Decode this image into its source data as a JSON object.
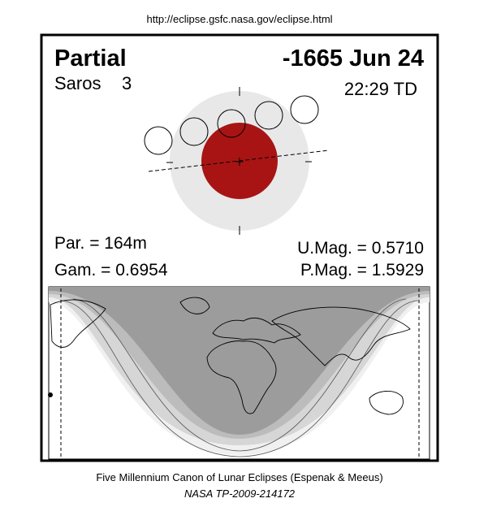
{
  "header": {
    "url": "http://eclipse.gsfc.nasa.gov/eclipse.html"
  },
  "panel": {
    "eclipse_type": "Partial",
    "date": "-1665 Jun 24",
    "saros_label": "Saros",
    "saros_number": "3",
    "time": "22:29 TD",
    "parameters": {
      "duration": "Par. = 164m",
      "gamma": "Gam. = 0.6954",
      "umbral_magnitude": "U.Mag. = 0.5710",
      "penumbral_magnitude": "P.Mag. = 1.5929"
    }
  },
  "footer": {
    "line1": "Five Millennium Canon of Lunar Eclipses (Espenak & Meeus)",
    "line2": "NASA TP-2009-214172"
  }
}
